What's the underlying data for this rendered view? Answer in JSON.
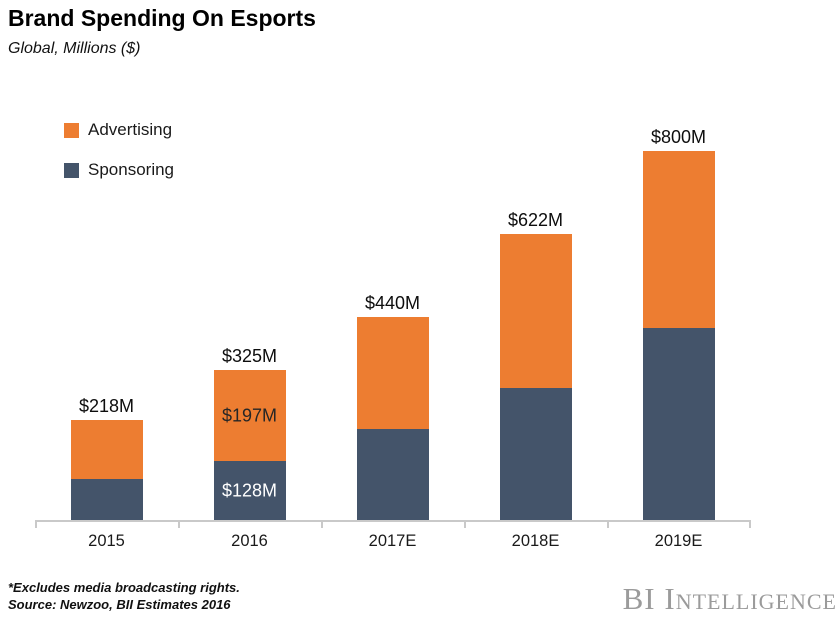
{
  "header": {
    "title": "Brand Spending On Esports",
    "subtitle": "Global, Millions ($)"
  },
  "legend": [
    {
      "label": "Advertising",
      "color": "#ED7D31"
    },
    {
      "label": "Sponsoring",
      "color": "#44546A"
    }
  ],
  "chart_data": {
    "type": "bar",
    "stacked": true,
    "title": "Brand Spending On Esports",
    "subtitle": "Global, Millions ($)",
    "categories": [
      "2015",
      "2016",
      "2017E",
      "2018E",
      "2019E"
    ],
    "series": [
      {
        "name": "Sponsoring",
        "color": "#44546A",
        "values": [
          90,
          128,
          198,
          287,
          417
        ]
      },
      {
        "name": "Advertising",
        "color": "#ED7D31",
        "values": [
          128,
          197,
          242,
          335,
          383
        ]
      }
    ],
    "totals": [
      218,
      325,
      440,
      622,
      800
    ],
    "total_labels": [
      "$218M",
      "$325M",
      "$440M",
      "$622M",
      "$800M"
    ],
    "segment_labels": [
      {
        "category_index": 1,
        "series": "Advertising",
        "text": "$197M",
        "color": "#262626"
      },
      {
        "category_index": 1,
        "series": "Sponsoring",
        "text": "$128M",
        "color": "#FFFFFF"
      }
    ],
    "ylim": [
      0,
      800
    ],
    "grid": false,
    "legend_position": "top-left",
    "axis_color": "#C9C9C9"
  },
  "footer": {
    "note_line1": "*Excludes media broadcasting rights.",
    "note_line2": "Source: Newzoo, BII Estimates 2016",
    "logo": "BI Intelligence"
  }
}
